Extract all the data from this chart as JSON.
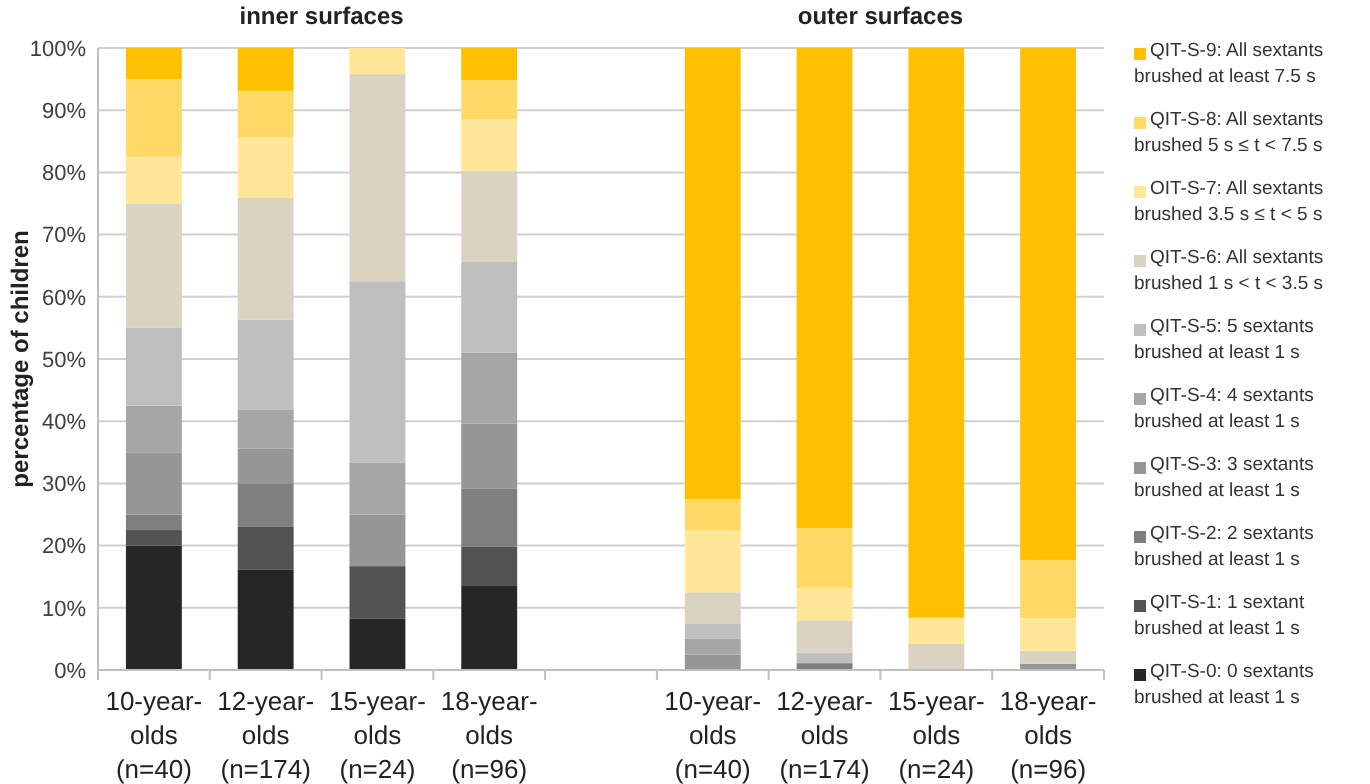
{
  "chart_data": {
    "type": "bar",
    "stacked": true,
    "ylabel": "percentage of children",
    "annotations": [
      "inner surfaces",
      "outer surfaces"
    ],
    "categories": [
      "10-year-\nolds\n(n=40)",
      "12-year-\nolds\n(n=174)",
      "15-year-\nolds\n(n=24)",
      "18-year-\nolds\n(n=96)",
      null,
      "10-year-\nolds\n(n=40)",
      "12-year-\nolds\n(n=174)",
      "15-year-\nolds\n(n=24)",
      "18-year-\nolds\n(n=96)"
    ],
    "ylim": [
      0,
      100
    ],
    "yticks": [
      {
        "value": 0,
        "label": "0%"
      },
      {
        "value": 10,
        "label": "10%"
      },
      {
        "value": 20,
        "label": "20%"
      },
      {
        "value": 30,
        "label": "30%"
      },
      {
        "value": 40,
        "label": "40%"
      },
      {
        "value": 50,
        "label": "50%"
      },
      {
        "value": 60,
        "label": "60%"
      },
      {
        "value": 70,
        "label": "70%"
      },
      {
        "value": 80,
        "label": "80%"
      },
      {
        "value": 90,
        "label": "90%"
      },
      {
        "value": 100,
        "label": "100%"
      }
    ],
    "grid": "y",
    "legend": "right",
    "series": [
      {
        "name": "QIT-S-0: 0 sextants brushed at least 1 s",
        "color": "#262626",
        "values": [
          20,
          16.1,
          8.3,
          13.5,
          null,
          0,
          0,
          0,
          0
        ]
      },
      {
        "name": "QIT-S-1: 1 sextant brushed at least 1 s",
        "color": "#525252",
        "values": [
          2.5,
          6.9,
          8.4,
          6.3,
          null,
          0,
          0,
          0,
          0
        ]
      },
      {
        "name": "QIT-S-2: 2 sextants brushed at least 1 s",
        "color": "#7f7f7f",
        "values": [
          2.5,
          6.9,
          0,
          9.4,
          null,
          0,
          1.1,
          0,
          0
        ]
      },
      {
        "name": "QIT-S-3: 3 sextants brushed at least 1 s",
        "color": "#969696",
        "values": [
          10,
          5.7,
          8.3,
          10.4,
          null,
          2.5,
          0,
          0,
          1
        ]
      },
      {
        "name": "QIT-S-4: 4 sextants brushed at least 1 s",
        "color": "#a6a6a6",
        "values": [
          7.5,
          6.3,
          8.3,
          11.4,
          null,
          2.5,
          0,
          0,
          0
        ]
      },
      {
        "name": "QIT-S-5: 5 sextants brushed at least 1 s",
        "color": "#bfbfbf",
        "values": [
          12.5,
          14.4,
          29.2,
          14.6,
          null,
          2.5,
          1.7,
          0,
          0
        ]
      },
      {
        "name": "QIT-S-6: All sextants brushed 1 s < t < 3.5 s",
        "color": "#dbd3c1",
        "values": [
          20,
          19.6,
          33.3,
          14.6,
          null,
          5,
          5.2,
          4.2,
          2.1
        ]
      },
      {
        "name": "OIT-S-7: All sextants brushed 3.5 s ≤ t < 5 s",
        "color": "#ffe699",
        "values": [
          7.5,
          9.7,
          4.2,
          8.3,
          null,
          10,
          5.2,
          4.2,
          5.2
        ]
      },
      {
        "name": "QIT-S-8: All sextants brushed 5 s ≤ t < 7.5 s",
        "color": "#ffd966",
        "values": [
          12.5,
          7.5,
          0,
          6.3,
          null,
          5,
          9.6,
          0,
          9.4
        ]
      },
      {
        "name": "QIT-S-9: All sextants brushed at least 7.5 s",
        "color": "#ffc000",
        "values": [
          5,
          6.9,
          0,
          5.2,
          null,
          72.5,
          77.2,
          91.6,
          82.3
        ]
      }
    ]
  }
}
